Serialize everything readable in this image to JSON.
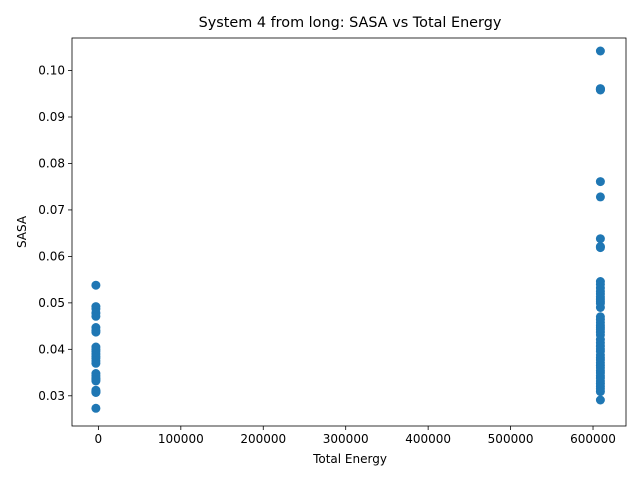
{
  "chart_data": {
    "type": "scatter",
    "title": "System 4 from long: SASA vs Total Energy",
    "xlabel": "Total Energy",
    "ylabel": "SASA",
    "xlim": [
      -32000,
      640000
    ],
    "ylim": [
      0.0235,
      0.107
    ],
    "xticks": [
      0,
      100000,
      200000,
      300000,
      400000,
      500000,
      600000
    ],
    "xtick_labels": [
      "0",
      "100000",
      "200000",
      "300000",
      "400000",
      "500000",
      "600000"
    ],
    "yticks": [
      0.03,
      0.04,
      0.05,
      0.06,
      0.07,
      0.08,
      0.09,
      0.1
    ],
    "ytick_labels": [
      "0.03",
      "0.04",
      "0.05",
      "0.06",
      "0.07",
      "0.08",
      "0.09",
      "0.10"
    ],
    "grid": false,
    "marker_color": "#1f77b4",
    "series": [
      {
        "x": [
          -3000,
          -3000,
          -3000,
          -3000,
          -3000,
          -3000,
          -3000,
          -3000,
          -3000,
          -3000,
          -3000,
          -3000,
          -3000,
          -3000,
          -3000,
          -3000,
          -3000,
          -3000,
          -3000,
          -3000,
          -3000,
          -3000,
          -3000,
          -3000,
          -3000,
          -3000
        ],
        "y": [
          0.0538,
          0.0492,
          0.0487,
          0.0478,
          0.0471,
          0.0447,
          0.0441,
          0.0437,
          0.0405,
          0.04,
          0.0396,
          0.039,
          0.0385,
          0.0381,
          0.0375,
          0.037,
          0.0348,
          0.0343,
          0.0338,
          0.0335,
          0.0332,
          0.0312,
          0.0309,
          0.0308,
          0.0307,
          0.0273
        ]
      },
      {
        "x": [
          609000,
          609000,
          609000,
          609000,
          609000,
          609000,
          609000,
          609000,
          609000,
          609000,
          609000,
          609000,
          609000,
          609000,
          609000,
          609000,
          609000,
          609000,
          609000,
          609000,
          609000,
          609000,
          609000,
          609000,
          609000,
          609000,
          609000,
          609000,
          609000,
          609000,
          609000,
          609000,
          609000,
          609000,
          609000,
          609000,
          609000,
          609000,
          609000,
          609000,
          609000,
          609000,
          609000,
          609000,
          609000,
          609000,
          609000,
          609000,
          609000
        ],
        "y": [
          0.1042,
          0.0961,
          0.096,
          0.0959,
          0.0958,
          0.0761,
          0.0728,
          0.0638,
          0.0621,
          0.0619,
          0.0546,
          0.054,
          0.0532,
          0.0525,
          0.0519,
          0.0513,
          0.0508,
          0.0503,
          0.0499,
          0.049,
          0.047,
          0.0464,
          0.0458,
          0.0452,
          0.0447,
          0.0443,
          0.0437,
          0.0431,
          0.0421,
          0.0414,
          0.0407,
          0.0401,
          0.0396,
          0.0388,
          0.0382,
          0.0377,
          0.0371,
          0.0365,
          0.036,
          0.0354,
          0.0349,
          0.0343,
          0.0338,
          0.0332,
          0.0326,
          0.032,
          0.0315,
          0.0309,
          0.0291
        ]
      }
    ]
  }
}
